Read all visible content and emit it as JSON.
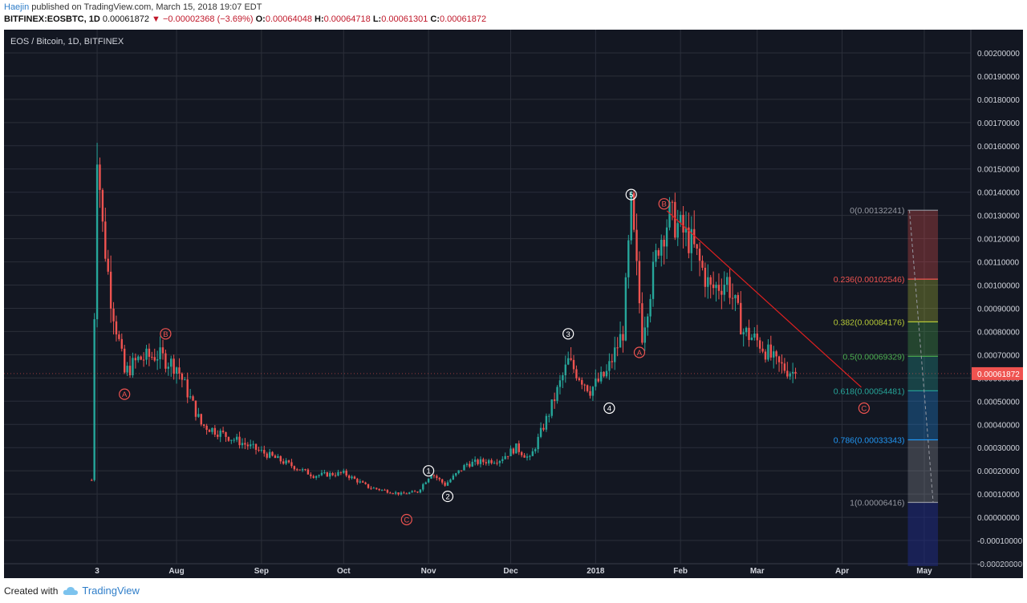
{
  "header": {
    "author": "Haejin",
    "published_text": "published on TradingView.com, March 15, 2018 19:07 EDT",
    "symbol": "BITFINEX:EOSBTC, 1D",
    "last": "0.00061872",
    "change": "▼ −0.00002368 (−3.69%)",
    "open_label": "O:",
    "open": "0.00064048",
    "high_label": "H:",
    "high": "0.00064718",
    "low_label": "L:",
    "low": "0.00061301",
    "close_label": "C:",
    "close": "0.00061872"
  },
  "footer": {
    "created_with": "Created with",
    "brand": "TradingView"
  },
  "chart_data": {
    "type": "candlestick",
    "title": "EOS / Bitcoin, 1D, BITFINEX",
    "colors": {
      "background": "#131722",
      "grid": "#2b2f3a",
      "up": "#26a69a",
      "down": "#ef5350",
      "text": "#d1d4dc",
      "wave_red": "#ef5350",
      "wave_white": "#ffffff",
      "trendline": "#e02020"
    },
    "y_axis": {
      "ylim": [
        -0.0002,
        0.0021
      ],
      "ticks": [
        "0.00200000",
        "0.00190000",
        "0.00180000",
        "0.00170000",
        "0.00160000",
        "0.00150000",
        "0.00140000",
        "0.00130000",
        "0.00120000",
        "0.00110000",
        "0.00100000",
        "0.00090000",
        "0.00080000",
        "0.00070000",
        "0.00060000",
        "0.00050000",
        "0.00040000",
        "0.00030000",
        "0.00020000",
        "0.00010000",
        "0.00000000",
        "-0.00010000",
        "-0.00020000"
      ],
      "last_price_label": "0.00061872"
    },
    "x_axis": {
      "ticks": [
        {
          "label": "3",
          "x": "2017-07-03"
        },
        {
          "label": "Aug",
          "x": "2017-08-01"
        },
        {
          "label": "Sep",
          "x": "2017-09-01"
        },
        {
          "label": "Oct",
          "x": "2017-10-01"
        },
        {
          "label": "Nov",
          "x": "2017-11-01"
        },
        {
          "label": "Dec",
          "x": "2017-12-01"
        },
        {
          "label": "2018",
          "x": "2018-01-01"
        },
        {
          "label": "Feb",
          "x": "2018-02-01"
        },
        {
          "label": "Mar",
          "x": "2018-03-01"
        },
        {
          "label": "Apr",
          "x": "2018-04-01"
        },
        {
          "label": "May",
          "x": "2018-05-01"
        }
      ],
      "xlim": [
        "2017-05-30",
        "2018-05-18"
      ]
    },
    "key_points": [
      {
        "x": "2017-07-01",
        "y": 0.00016
      },
      {
        "x": "2017-07-03",
        "y": 0.0016
      },
      {
        "x": "2017-07-05",
        "y": 0.00125
      },
      {
        "x": "2017-07-08",
        "y": 0.00095
      },
      {
        "x": "2017-07-13",
        "y": 0.00062
      },
      {
        "x": "2017-07-18",
        "y": 0.00068
      },
      {
        "x": "2017-07-25",
        "y": 0.0007
      },
      {
        "x": "2017-08-01",
        "y": 0.00065
      },
      {
        "x": "2017-08-10",
        "y": 0.0004
      },
      {
        "x": "2017-08-25",
        "y": 0.00032
      },
      {
        "x": "2017-09-05",
        "y": 0.00026
      },
      {
        "x": "2017-09-20",
        "y": 0.00018
      },
      {
        "x": "2017-10-01",
        "y": 0.00019
      },
      {
        "x": "2017-10-10",
        "y": 0.00013
      },
      {
        "x": "2017-10-22",
        "y": 0.0001
      },
      {
        "x": "2017-10-28",
        "y": 0.00011
      },
      {
        "x": "2017-11-02",
        "y": 0.00019
      },
      {
        "x": "2017-11-07",
        "y": 0.00014
      },
      {
        "x": "2017-11-15",
        "y": 0.00023
      },
      {
        "x": "2017-11-27",
        "y": 0.00025
      },
      {
        "x": "2017-12-03",
        "y": 0.0003
      },
      {
        "x": "2017-12-08",
        "y": 0.00025
      },
      {
        "x": "2017-12-15",
        "y": 0.00045
      },
      {
        "x": "2017-12-22",
        "y": 0.00067
      },
      {
        "x": "2017-12-30",
        "y": 0.00055
      },
      {
        "x": "2018-01-05",
        "y": 0.00062
      },
      {
        "x": "2018-01-11",
        "y": 0.0008
      },
      {
        "x": "2018-01-14",
        "y": 0.00133
      },
      {
        "x": "2018-01-18",
        "y": 0.00079
      },
      {
        "x": "2018-01-24",
        "y": 0.00118
      },
      {
        "x": "2018-01-28",
        "y": 0.0013
      },
      {
        "x": "2018-02-05",
        "y": 0.00118
      },
      {
        "x": "2018-02-12",
        "y": 0.00098
      },
      {
        "x": "2018-02-18",
        "y": 0.00102
      },
      {
        "x": "2018-02-24",
        "y": 0.0008
      },
      {
        "x": "2018-03-02",
        "y": 0.00075
      },
      {
        "x": "2018-03-08",
        "y": 0.00066
      },
      {
        "x": "2018-03-15",
        "y": 0.000619
      }
    ],
    "wave_labels": [
      {
        "text": "A",
        "color": "red",
        "x": "2017-07-13",
        "y": 0.00053
      },
      {
        "text": "B",
        "color": "red",
        "x": "2017-07-28",
        "y": 0.00079
      },
      {
        "text": "C",
        "color": "red",
        "x": "2017-10-24",
        "y": -1e-05
      },
      {
        "text": "1",
        "color": "white",
        "x": "2017-11-01",
        "y": 0.0002
      },
      {
        "text": "2",
        "color": "white",
        "x": "2017-11-08",
        "y": 9e-05
      },
      {
        "text": "3",
        "color": "white",
        "x": "2017-12-22",
        "y": 0.00079
      },
      {
        "text": "4",
        "color": "white",
        "x": "2018-01-06",
        "y": 0.00047
      },
      {
        "text": "5",
        "color": "white",
        "x": "2018-01-14",
        "y": 0.00139
      },
      {
        "text": "B",
        "color": "red",
        "x": "2018-01-26",
        "y": 0.00135
      },
      {
        "text": "A",
        "color": "red",
        "x": "2018-01-17",
        "y": 0.00071
      },
      {
        "text": "C",
        "color": "red",
        "x": "2018-04-09",
        "y": 0.00047
      }
    ],
    "trendline": {
      "from": {
        "x": "2018-01-27",
        "y": 0.00132
      },
      "to": {
        "x": "2018-04-08",
        "y": 0.00056
      }
    },
    "fibonacci": {
      "x_start": "2018-04-25",
      "x_end": "2018-05-06",
      "levels": [
        {
          "label": "0(0.00132241)",
          "value": 0.00132241,
          "color": "#9598a1"
        },
        {
          "label": "0.236(0.00102546)",
          "value": 0.00102546,
          "color": "#ef5350"
        },
        {
          "label": "0.382(0.00084176)",
          "value": 0.00084176,
          "color": "#b5c837"
        },
        {
          "label": "0.5(0.00069329)",
          "value": 0.00069329,
          "color": "#4caf50"
        },
        {
          "label": "0.618(0.00054481)",
          "value": 0.00054481,
          "color": "#26a69a"
        },
        {
          "label": "0.786(0.00033343)",
          "value": 0.00033343,
          "color": "#2196f3"
        },
        {
          "label": "1(0.00006416)",
          "value": 6.416e-05,
          "color": "#9598a1"
        }
      ],
      "extension_bottom": -0.00021
    }
  }
}
